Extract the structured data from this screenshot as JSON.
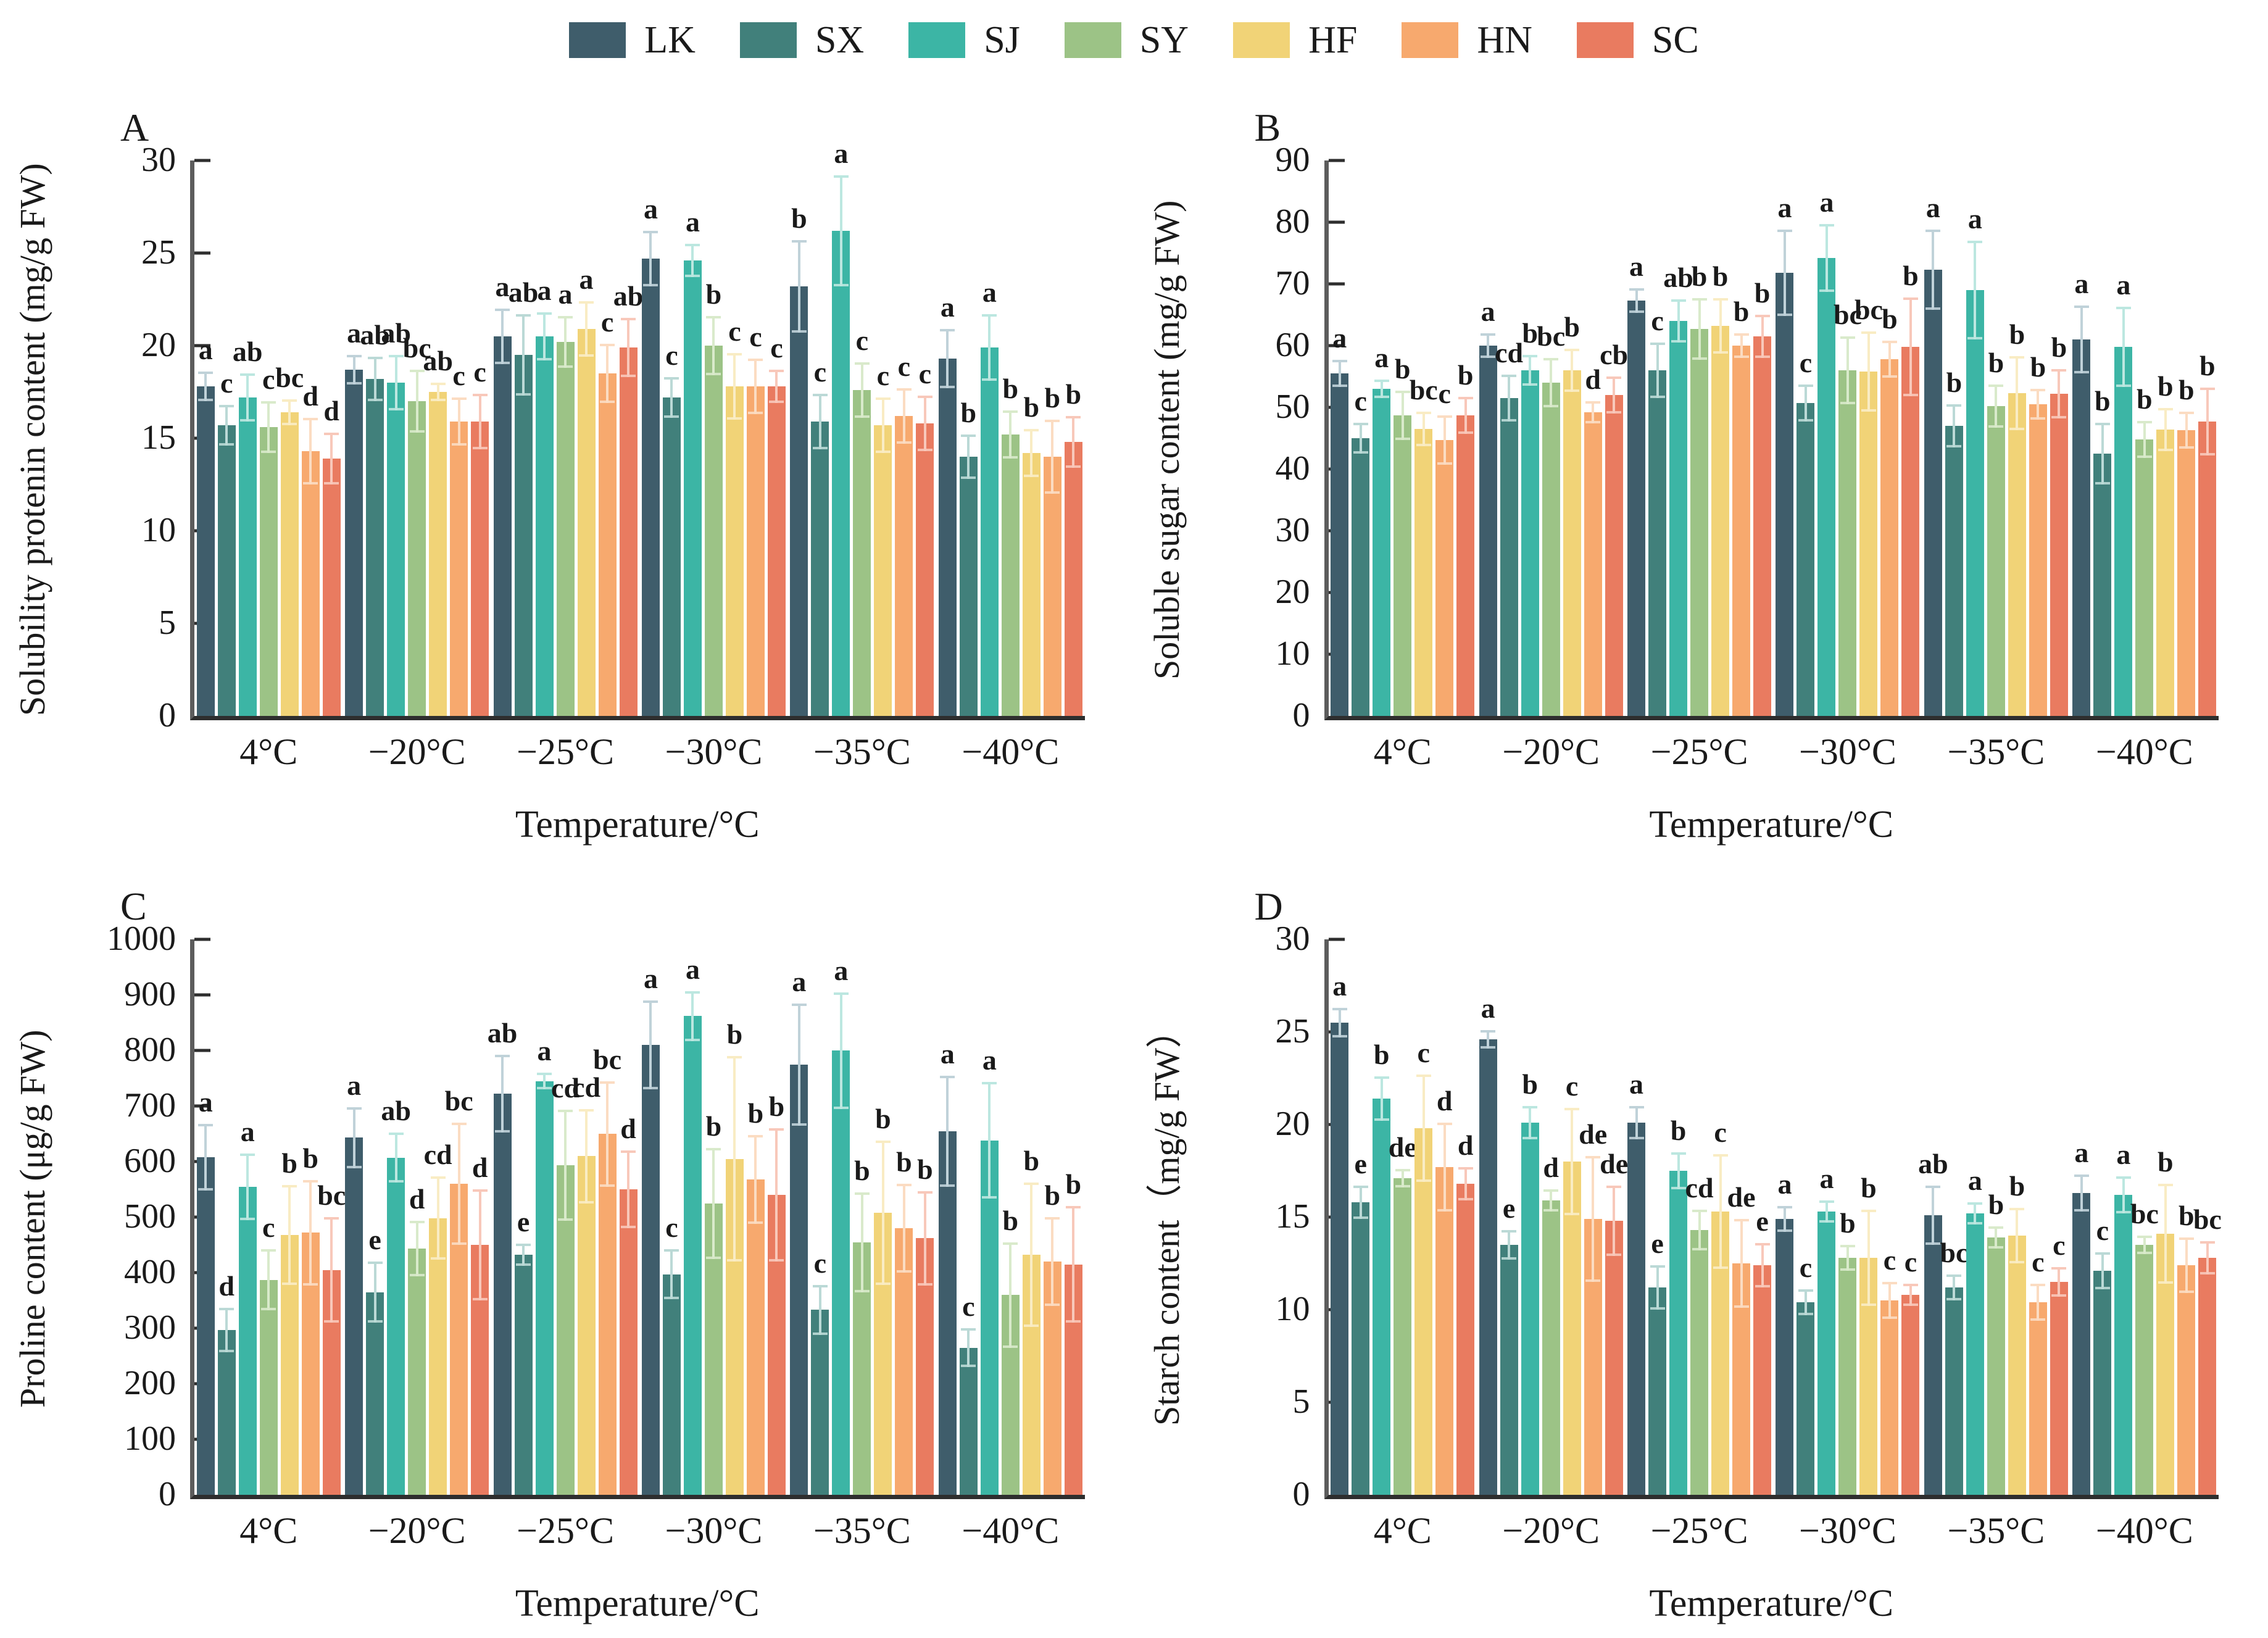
{
  "legend": {
    "items": [
      {
        "label": "LK",
        "color": "#3f5d6b",
        "light": "#c0d2d9"
      },
      {
        "label": "SX",
        "color": "#41807b",
        "light": "#bbd9d6"
      },
      {
        "label": "SJ",
        "color": "#3cb5a5",
        "light": "#bce7e0"
      },
      {
        "label": "SY",
        "color": "#9cc386",
        "light": "#d9eacb"
      },
      {
        "label": "HF",
        "color": "#f1d377",
        "light": "#f9ecc4"
      },
      {
        "label": "HN",
        "color": "#f7a96e",
        "light": "#fbdcc2"
      },
      {
        "label": "SC",
        "color": "#e97b60",
        "light": "#f8c8ba"
      }
    ]
  },
  "x_axis_title": "Temperature/°C",
  "categories": [
    "4°C",
    "−20°C",
    "−25°C",
    "−30°C",
    "−35°C",
    "−40°C"
  ],
  "chart_data": [
    {
      "id": "A",
      "type": "bar",
      "panel_letter": "A",
      "ylabel": "Solubility protenin content (mg/g FW)",
      "xlabel": "Temperature/°C",
      "ylim": [
        0,
        30
      ],
      "ytick_step": 5,
      "grid": false,
      "categories": [
        "4°C",
        "−20°C",
        "−25°C",
        "−30°C",
        "−35°C",
        "−40°C"
      ],
      "series": [
        {
          "name": "LK",
          "values": [
            17.8,
            18.7,
            20.5,
            24.7,
            23.2,
            19.3
          ],
          "errors": [
            0.8,
            0.8,
            1.5,
            1.5,
            2.5,
            1.6
          ],
          "letters": [
            "a",
            "a",
            "a",
            "a",
            "b",
            "a"
          ]
        },
        {
          "name": "SX",
          "values": [
            15.7,
            18.2,
            19.5,
            17.2,
            15.9,
            14.0
          ],
          "errors": [
            1.1,
            1.2,
            2.2,
            1.1,
            1.5,
            1.2
          ],
          "letters": [
            "c",
            "ab",
            "ab",
            "c",
            "c",
            "b"
          ]
        },
        {
          "name": "SJ",
          "values": [
            17.2,
            18.0,
            20.5,
            24.6,
            26.2,
            19.9
          ],
          "errors": [
            1.3,
            1.5,
            1.3,
            0.9,
            3.0,
            1.8
          ],
          "letters": [
            "ab",
            "ab",
            "a",
            "a",
            "a",
            "a"
          ]
        },
        {
          "name": "SY",
          "values": [
            15.6,
            17.0,
            20.2,
            20.0,
            17.6,
            15.2
          ],
          "errors": [
            1.4,
            1.7,
            1.4,
            1.6,
            1.5,
            1.3
          ],
          "letters": [
            "c",
            "bc",
            "a",
            "b",
            "c",
            "b"
          ]
        },
        {
          "name": "HF",
          "values": [
            16.4,
            17.5,
            20.9,
            17.8,
            15.7,
            14.2
          ],
          "errors": [
            0.7,
            0.5,
            1.5,
            1.8,
            1.5,
            1.3
          ],
          "letters": [
            "bc",
            "ab",
            "a",
            "c",
            "c",
            "b"
          ]
        },
        {
          "name": "HN",
          "values": [
            14.3,
            15.9,
            18.5,
            17.8,
            16.2,
            14.0
          ],
          "errors": [
            1.8,
            1.3,
            1.6,
            1.5,
            1.5,
            2.0
          ],
          "letters": [
            "d",
            "c",
            "c",
            "c",
            "c",
            "b"
          ]
        },
        {
          "name": "SC",
          "values": [
            13.9,
            15.9,
            19.9,
            17.8,
            15.8,
            14.8
          ],
          "errors": [
            1.4,
            1.5,
            1.6,
            0.9,
            1.5,
            1.4
          ],
          "letters": [
            "d",
            "c",
            "ab",
            "c",
            "c",
            "b"
          ]
        }
      ]
    },
    {
      "id": "B",
      "type": "bar",
      "panel_letter": "B",
      "ylabel": "Soluble sugar content (mg/g FW)",
      "xlabel": "Temperature/°C",
      "ylim": [
        0,
        90
      ],
      "ytick_step": 10,
      "grid": false,
      "categories": [
        "4°C",
        "−20°C",
        "−25°C",
        "−30°C",
        "−35°C",
        "−40°C"
      ],
      "series": [
        {
          "name": "LK",
          "values": [
            55.5,
            60.0,
            67.3,
            71.8,
            72.3,
            61.0
          ],
          "errors": [
            2.2,
            2.0,
            2.0,
            7.0,
            6.5,
            5.5
          ],
          "letters": [
            "a",
            "a",
            "a",
            "a",
            "a",
            "a"
          ]
        },
        {
          "name": "SX",
          "values": [
            45.0,
            51.5,
            56.0,
            50.7,
            47.0,
            42.5
          ],
          "errors": [
            2.5,
            3.8,
            4.5,
            3.0,
            3.5,
            5.0
          ],
          "letters": [
            "c",
            "cd",
            "c",
            "c",
            "b",
            "b"
          ]
        },
        {
          "name": "SJ",
          "values": [
            53.0,
            56.0,
            64.0,
            74.2,
            69.0,
            59.8
          ],
          "errors": [
            1.5,
            2.5,
            3.5,
            5.5,
            8.0,
            6.5
          ],
          "letters": [
            "a",
            "b",
            "ab",
            "a",
            "a",
            "a"
          ]
        },
        {
          "name": "SY",
          "values": [
            48.7,
            54.0,
            62.7,
            56.0,
            50.2,
            44.8
          ],
          "errors": [
            4.0,
            4.0,
            5.0,
            5.5,
            3.5,
            3.0
          ],
          "letters": [
            "b",
            "bc",
            "b",
            "bc",
            "b",
            "b"
          ]
        },
        {
          "name": "HF",
          "values": [
            46.5,
            56.0,
            63.2,
            55.8,
            52.3,
            46.4
          ],
          "errors": [
            2.8,
            3.5,
            4.5,
            6.5,
            6.0,
            3.5
          ],
          "letters": [
            "bc",
            "b",
            "b",
            "bc",
            "b",
            "b"
          ]
        },
        {
          "name": "HN",
          "values": [
            44.7,
            49.2,
            60.0,
            57.8,
            50.5,
            46.3
          ],
          "errors": [
            4.0,
            1.8,
            2.0,
            3.0,
            2.5,
            3.0
          ],
          "letters": [
            "c",
            "d",
            "b",
            "b",
            "b",
            "b"
          ]
        },
        {
          "name": "SC",
          "values": [
            48.7,
            52.0,
            61.5,
            59.8,
            52.2,
            47.7
          ],
          "errors": [
            3.0,
            3.0,
            3.5,
            8.0,
            4.0,
            5.5
          ],
          "letters": [
            "b",
            "cb",
            "b",
            "b",
            "b",
            "b"
          ]
        }
      ]
    },
    {
      "id": "C",
      "type": "bar",
      "panel_letter": "C",
      "ylabel": "Proline content (μg/g FW)",
      "xlabel": "Temperature/°C",
      "ylim": [
        0,
        1000
      ],
      "ytick_step": 100,
      "grid": false,
      "categories": [
        "4°C",
        "−20°C",
        "−25°C",
        "−30°C",
        "−35°C",
        "−40°C"
      ],
      "series": [
        {
          "name": "LK",
          "values": [
            608,
            643,
            722,
            810,
            775,
            655
          ],
          "errors": [
            60,
            55,
            70,
            80,
            110,
            100
          ],
          "letters": [
            "a",
            "a",
            "ab",
            "a",
            "a",
            "a"
          ]
        },
        {
          "name": "SX",
          "values": [
            297,
            365,
            432,
            397,
            333,
            265
          ],
          "errors": [
            40,
            55,
            20,
            45,
            45,
            35
          ],
          "letters": [
            "d",
            "e",
            "e",
            "c",
            "c",
            "c"
          ]
        },
        {
          "name": "SJ",
          "values": [
            555,
            607,
            745,
            862,
            800,
            638
          ],
          "errors": [
            60,
            45,
            15,
            45,
            105,
            105
          ],
          "letters": [
            "a",
            "ab",
            "a",
            "a",
            "a",
            "a"
          ]
        },
        {
          "name": "SY",
          "values": [
            387,
            443,
            593,
            525,
            455,
            360
          ],
          "errors": [
            55,
            50,
            100,
            100,
            90,
            95
          ],
          "letters": [
            "c",
            "d",
            "cd",
            "b",
            "b",
            "b"
          ]
        },
        {
          "name": "HF",
          "values": [
            468,
            498,
            610,
            605,
            508,
            432
          ],
          "errors": [
            90,
            75,
            85,
            185,
            130,
            130
          ],
          "letters": [
            "b",
            "cd",
            "cd",
            "b",
            "b",
            "b"
          ]
        },
        {
          "name": "HN",
          "values": [
            472,
            560,
            650,
            568,
            480,
            420
          ],
          "errors": [
            95,
            110,
            95,
            80,
            80,
            80
          ],
          "letters": [
            "b",
            "bc",
            "bc",
            "b",
            "b",
            "b"
          ]
        },
        {
          "name": "SC",
          "values": [
            405,
            450,
            550,
            540,
            462,
            415
          ],
          "errors": [
            95,
            100,
            70,
            120,
            85,
            105
          ],
          "letters": [
            "bc",
            "d",
            "d",
            "b",
            "b",
            "b"
          ]
        }
      ]
    },
    {
      "id": "D",
      "type": "bar",
      "panel_letter": "D",
      "ylabel": "Starch content（mg/g FW）",
      "xlabel": "Temperature/°C",
      "ylim": [
        0,
        30
      ],
      "ytick_step": 5,
      "grid": false,
      "categories": [
        "4°C",
        "−20°C",
        "−25°C",
        "−30°C",
        "−35°C",
        "−40°C"
      ],
      "series": [
        {
          "name": "LK",
          "values": [
            25.5,
            24.6,
            20.1,
            14.9,
            15.1,
            16.3
          ],
          "errors": [
            0.8,
            0.5,
            0.9,
            0.7,
            1.6,
            1.0
          ],
          "letters": [
            "a",
            "a",
            "a",
            "a",
            "ab",
            "a"
          ]
        },
        {
          "name": "SX",
          "values": [
            15.8,
            13.5,
            11.2,
            10.4,
            11.2,
            12.1
          ],
          "errors": [
            0.9,
            0.8,
            1.2,
            0.7,
            0.7,
            1.0
          ],
          "letters": [
            "e",
            "e",
            "e",
            "c",
            "bc",
            "c"
          ]
        },
        {
          "name": "SJ",
          "values": [
            21.4,
            20.1,
            17.5,
            15.3,
            15.2,
            16.2
          ],
          "errors": [
            1.2,
            0.9,
            1.0,
            0.6,
            0.6,
            1.0
          ],
          "letters": [
            "b",
            "b",
            "b",
            "a",
            "a",
            "a"
          ]
        },
        {
          "name": "SY",
          "values": [
            17.1,
            15.9,
            14.3,
            12.8,
            13.9,
            13.5
          ],
          "errors": [
            0.5,
            0.6,
            1.1,
            0.7,
            0.6,
            0.5
          ],
          "letters": [
            "de",
            "d",
            "cd",
            "b",
            "b",
            "bc"
          ]
        },
        {
          "name": "HF",
          "values": [
            19.8,
            18.0,
            15.3,
            12.8,
            14.0,
            14.1
          ],
          "errors": [
            2.9,
            2.9,
            3.1,
            2.6,
            1.5,
            2.7
          ],
          "letters": [
            "c",
            "c",
            "c",
            "b",
            "b",
            "b"
          ]
        },
        {
          "name": "HN",
          "values": [
            17.7,
            14.9,
            12.5,
            10.5,
            10.4,
            12.4
          ],
          "errors": [
            2.4,
            3.4,
            2.4,
            1.0,
            1.0,
            1.5
          ],
          "letters": [
            "d",
            "de",
            "de",
            "c",
            "c",
            "b"
          ]
        },
        {
          "name": "SC",
          "values": [
            16.8,
            14.8,
            12.4,
            10.8,
            11.5,
            12.8
          ],
          "errors": [
            0.9,
            1.9,
            1.2,
            0.6,
            0.8,
            0.9
          ],
          "letters": [
            "d",
            "de",
            "e",
            "c",
            "c",
            "bc"
          ]
        }
      ]
    }
  ]
}
